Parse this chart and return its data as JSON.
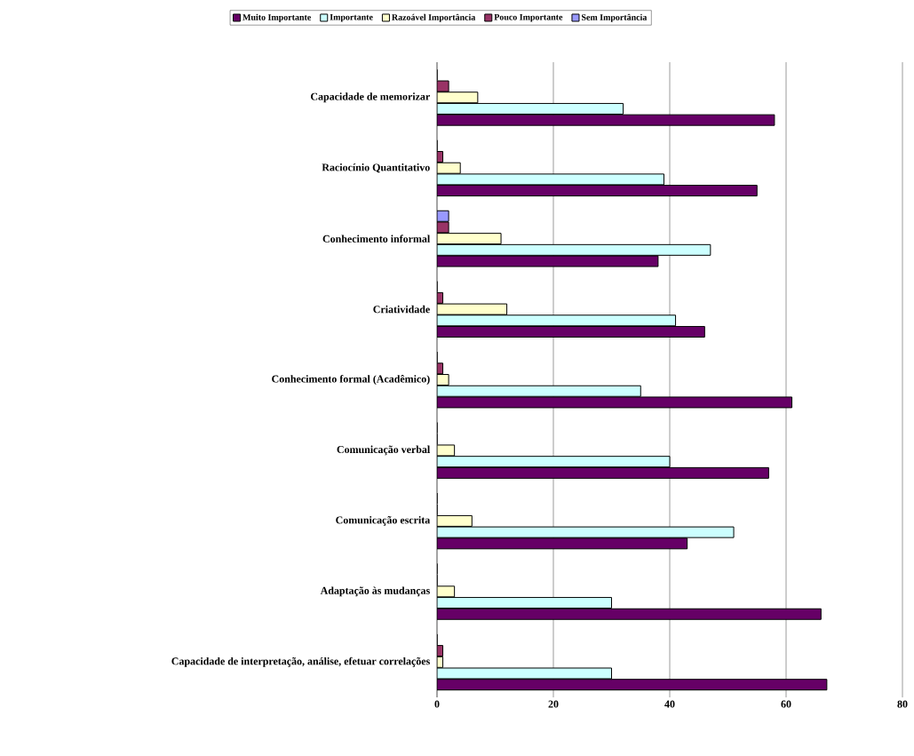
{
  "chart_data": {
    "type": "bar",
    "orientation": "horizontal",
    "categories": [
      "Capacidade de memorizar",
      "Raciocínio Quantitativo",
      "Conhecimento informal",
      "Criatividade",
      "Conhecimento formal (Acadêmico)",
      "Comunicação verbal",
      "Comunicação escrita",
      "Adaptação às mudanças",
      "Capacidade de interpretação, análise, efetuar correlações"
    ],
    "series": [
      {
        "name": "Muito Importante",
        "color": "#660066",
        "values": [
          58,
          55,
          38,
          46,
          61,
          57,
          43,
          66,
          67
        ]
      },
      {
        "name": "Importante",
        "color": "#ccffff",
        "values": [
          32,
          39,
          47,
          41,
          35,
          40,
          51,
          30,
          30
        ]
      },
      {
        "name": "Razoável Importância",
        "color": "#ffffcc",
        "values": [
          7,
          4,
          11,
          12,
          2,
          3,
          6,
          3,
          1
        ]
      },
      {
        "name": "Pouco Importante",
        "color": "#993366",
        "values": [
          2,
          1,
          2,
          1,
          1,
          0,
          0,
          0,
          1
        ]
      },
      {
        "name": "Sem Importância",
        "color": "#9999ff",
        "values": [
          0,
          0,
          2,
          0,
          0,
          0,
          0,
          0,
          0
        ]
      }
    ],
    "xlim": [
      0,
      80
    ],
    "xticks": [
      0,
      20,
      40,
      60,
      80
    ],
    "grid": "x",
    "legend": "top"
  }
}
